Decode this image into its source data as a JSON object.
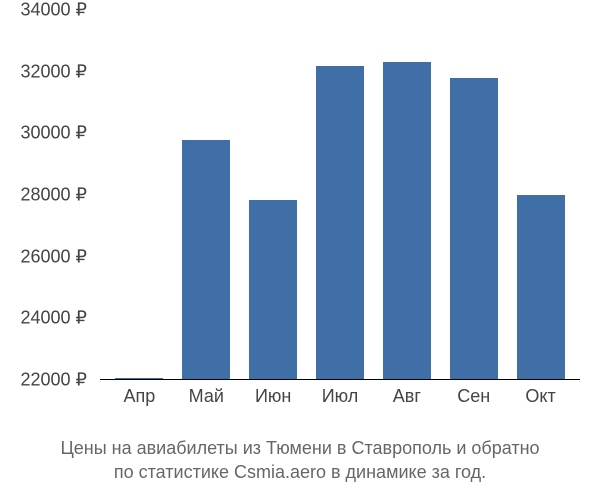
{
  "chart": {
    "type": "bar",
    "background_color": "#ffffff",
    "bar_color": "#3f6fa6",
    "baseline_color": "#000000",
    "axis_label_color": "#444444",
    "caption_color": "#666666",
    "axis_font_size": 18,
    "caption_font_size": 18,
    "bar_width_ratio": 0.72,
    "y_axis": {
      "min": 22000,
      "max": 34000,
      "tick_step": 2000,
      "currency_suffix": " ₽",
      "ticks": [
        {
          "value": 22000,
          "label": "22000 ₽"
        },
        {
          "value": 24000,
          "label": "24000 ₽"
        },
        {
          "value": 26000,
          "label": "26000 ₽"
        },
        {
          "value": 28000,
          "label": "28000 ₽"
        },
        {
          "value": 30000,
          "label": "30000 ₽"
        },
        {
          "value": 32000,
          "label": "32000 ₽"
        },
        {
          "value": 34000,
          "label": "34000 ₽"
        }
      ]
    },
    "categories": [
      "Апр",
      "Май",
      "Июн",
      "Июл",
      "Авг",
      "Сен",
      "Окт"
    ],
    "values": [
      22050,
      29800,
      27850,
      32200,
      32300,
      31800,
      28000
    ]
  },
  "caption": {
    "line1": "Цены на авиабилеты из Тюмени в Ставрополь и обратно",
    "line2": "по статистике Csmia.aero в динамике за год."
  }
}
